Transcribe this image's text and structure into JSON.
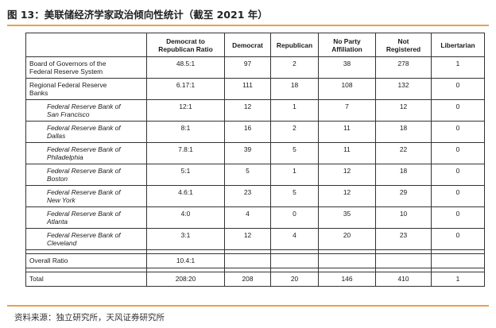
{
  "figure": {
    "title": "图 13：美联储经济学家政治倾向性统计（截至 2021 年）",
    "source": "资料来源：独立研究所，天风证券研究所"
  },
  "table": {
    "headers": [
      "",
      "Democrat to\nRepublican Ratio",
      "Democrat",
      "Republican",
      "No Party\nAffiliation",
      "Not\nRegistered",
      "Libertarian"
    ],
    "rows": [
      {
        "label": "Board of Governors of the\nFederal Reserve System",
        "ratio": "48.5:1",
        "democrat": "97",
        "republican": "2",
        "no_party": "38",
        "not_registered": "278",
        "libertarian": "1"
      },
      {
        "label": "Regional Federal Reserve\nBanks",
        "ratio": "6.17:1",
        "democrat": "111",
        "republican": "18",
        "no_party": "108",
        "not_registered": "132",
        "libertarian": "0"
      },
      {
        "label": "Federal Reserve Bank of\nSan Francisco",
        "ratio": "12:1",
        "democrat": "12",
        "republican": "1",
        "no_party": "7",
        "not_registered": "12",
        "libertarian": "0"
      },
      {
        "label": "Federal Reserve Bank of\nDallas",
        "ratio": "8:1",
        "democrat": "16",
        "republican": "2",
        "no_party": "11",
        "not_registered": "18",
        "libertarian": "0"
      },
      {
        "label": "Federal Reserve Bank of\nPhiladelphia",
        "ratio": "7.8:1",
        "democrat": "39",
        "republican": "5",
        "no_party": "11",
        "not_registered": "22",
        "libertarian": "0"
      },
      {
        "label": "Federal Reserve Bank of\nBoston",
        "ratio": "5:1",
        "democrat": "5",
        "republican": "1",
        "no_party": "12",
        "not_registered": "18",
        "libertarian": "0"
      },
      {
        "label": "Federal Reserve Bank of\nNew York",
        "ratio": "4.6:1",
        "democrat": "23",
        "republican": "5",
        "no_party": "12",
        "not_registered": "29",
        "libertarian": "0"
      },
      {
        "label": "Federal Reserve Bank of\nAtlanta",
        "ratio": "4:0",
        "democrat": "4",
        "republican": "0",
        "no_party": "35",
        "not_registered": "10",
        "libertarian": "0"
      },
      {
        "label": "Federal Reserve Bank of\nCleveland",
        "ratio": "3:1",
        "democrat": "12",
        "republican": "4",
        "no_party": "20",
        "not_registered": "23",
        "libertarian": "0"
      }
    ],
    "overall": {
      "label": "Overall Ratio",
      "ratio": "10.4:1"
    },
    "total": {
      "label": "Total",
      "ratio": "208:20",
      "democrat": "208",
      "republican": "20",
      "no_party": "146",
      "not_registered": "410",
      "libertarian": "1"
    }
  }
}
